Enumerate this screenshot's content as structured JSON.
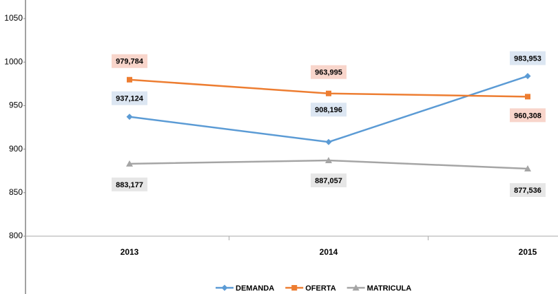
{
  "chart_data": {
    "type": "line",
    "categories": [
      "2013",
      "2014",
      "2015"
    ],
    "series": [
      {
        "name": "DEMANDA",
        "color": "#5b9bd5",
        "values": [
          937.124,
          908.196,
          983.953
        ],
        "value_labels": [
          "937,124",
          "908,196",
          "983,953"
        ]
      },
      {
        "name": "OFERTA",
        "color": "#ed7d31",
        "values": [
          979.784,
          963.995,
          960.308
        ],
        "value_labels": [
          "979,784",
          "963,995",
          "960,308"
        ]
      },
      {
        "name": "MATRICULA",
        "color": "#a5a5a5",
        "values": [
          883.177,
          887.057,
          877.536
        ],
        "value_labels": [
          "883,177",
          "887,057",
          "877,536"
        ]
      }
    ],
    "ylim": [
      800,
      1050
    ],
    "yticks": [
      800,
      850,
      900,
      950,
      1000,
      1050
    ],
    "grid": false,
    "legend": "bottom"
  }
}
